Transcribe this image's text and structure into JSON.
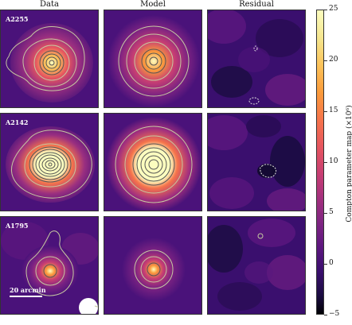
{
  "column_titles": [
    "Data",
    "Model",
    "Residual"
  ],
  "clusters": [
    "A2255",
    "A2142",
    "A1795"
  ],
  "scale_bar_label": "20 arcmin",
  "colorbar": {
    "label": "Compton parameter map (×10⁶)",
    "ticks": [
      "25",
      "20",
      "15",
      "10",
      "5",
      "0",
      "−5"
    ],
    "tick_values": [
      25,
      20,
      15,
      10,
      5,
      0,
      -5
    ],
    "range": [
      -5,
      25
    ],
    "colormap": "magma"
  },
  "chart_data": {
    "type": "heatmap",
    "layout": "3x3 panel grid",
    "columns": [
      "Data",
      "Model",
      "Residual"
    ],
    "rows": [
      "A2255",
      "A2142",
      "A1795"
    ],
    "colorbar_range": [
      -5,
      25
    ],
    "colorbar_label": "Compton parameter map (×10⁶)",
    "scale_bar": "20 arcmin",
    "contours": "solid light contours on data/model, dashed white contours on residual"
  }
}
